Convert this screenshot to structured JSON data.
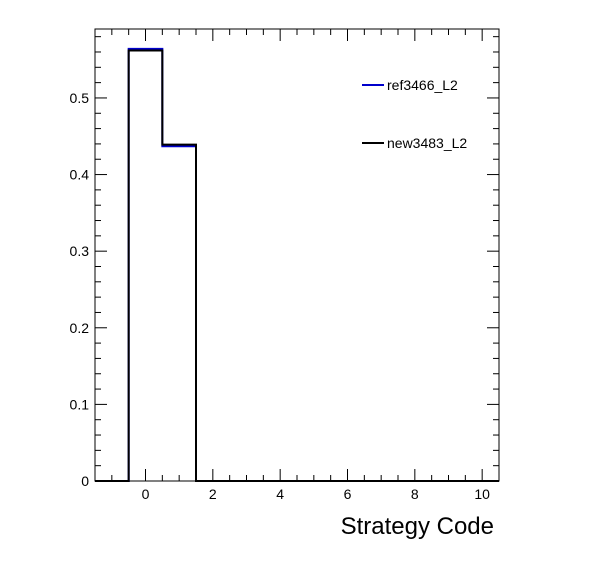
{
  "chart_data": {
    "type": "histogram",
    "xlabel": "Strategy Code",
    "ylabel": "",
    "xlim": [
      -1.5,
      10.5
    ],
    "ylim": [
      0,
      0.59
    ],
    "xticks": [
      0,
      2,
      4,
      6,
      8,
      10
    ],
    "yticks": [
      0,
      0.1,
      0.2,
      0.3,
      0.4,
      0.5
    ],
    "xtick_labels": [
      "0",
      "2",
      "4",
      "6",
      "8",
      "10"
    ],
    "ytick_labels": [
      "0",
      "0.1",
      "0.2",
      "0.3",
      "0.4",
      "0.5"
    ],
    "bin_edges": [
      -0.5,
      0.5,
      1.5,
      2.5,
      3.5,
      4.5,
      5.5,
      6.5,
      7.5,
      8.5,
      9.5,
      10.5
    ],
    "series": [
      {
        "name": "ref3466_L2",
        "color": "#0000cc",
        "values": [
          0.564,
          0.437,
          0,
          0,
          0,
          0,
          0,
          0,
          0,
          0,
          0
        ]
      },
      {
        "name": "new3483_L2",
        "color": "#000000",
        "values": [
          0.562,
          0.439,
          0,
          0,
          0,
          0,
          0,
          0,
          0,
          0,
          0
        ]
      }
    ],
    "legend_position": "top-right",
    "grid": false
  }
}
